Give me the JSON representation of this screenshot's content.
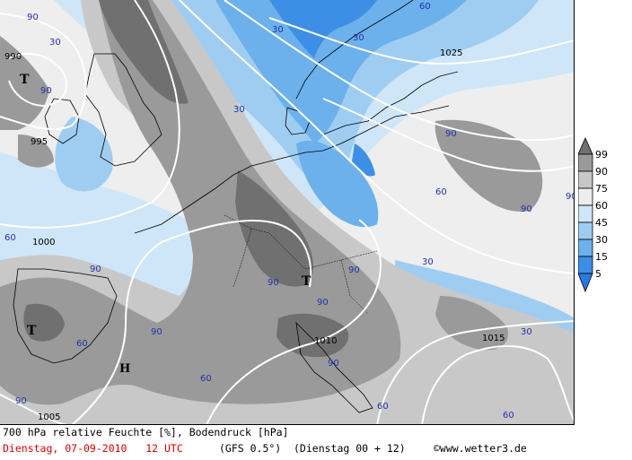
{
  "map": {
    "title_line": "700 hPa relative Feuchte [%], Bodendruck [hPa]",
    "date_line": "Dienstag, 07-09-2010   12 UTC",
    "model": "(GFS 0.5°)",
    "run": "(Dienstag 00 + 12)",
    "copyright": "©www.wetter3.de"
  },
  "legend": {
    "levels": [
      "99",
      "90",
      "75",
      "60",
      "45",
      "30",
      "15",
      "5"
    ],
    "colors": {
      "c99": "#707070",
      "c90": "#9a9a9a",
      "c75": "#c8c8c8",
      "c60": "#eeeeee",
      "c45": "#cfe6f8",
      "c30": "#9fcdf2",
      "c15": "#6cb0ec",
      "c5": "#3d8fe6"
    }
  },
  "isobars": [
    "990",
    "995",
    "1000",
    "1005",
    "1010",
    "1015",
    "1025"
  ],
  "pressure_systems": {
    "low_1": "T",
    "low_2": "T",
    "low_3": "T",
    "high_1": "H"
  },
  "rh_labels": [
    "30",
    "60",
    "90"
  ]
}
